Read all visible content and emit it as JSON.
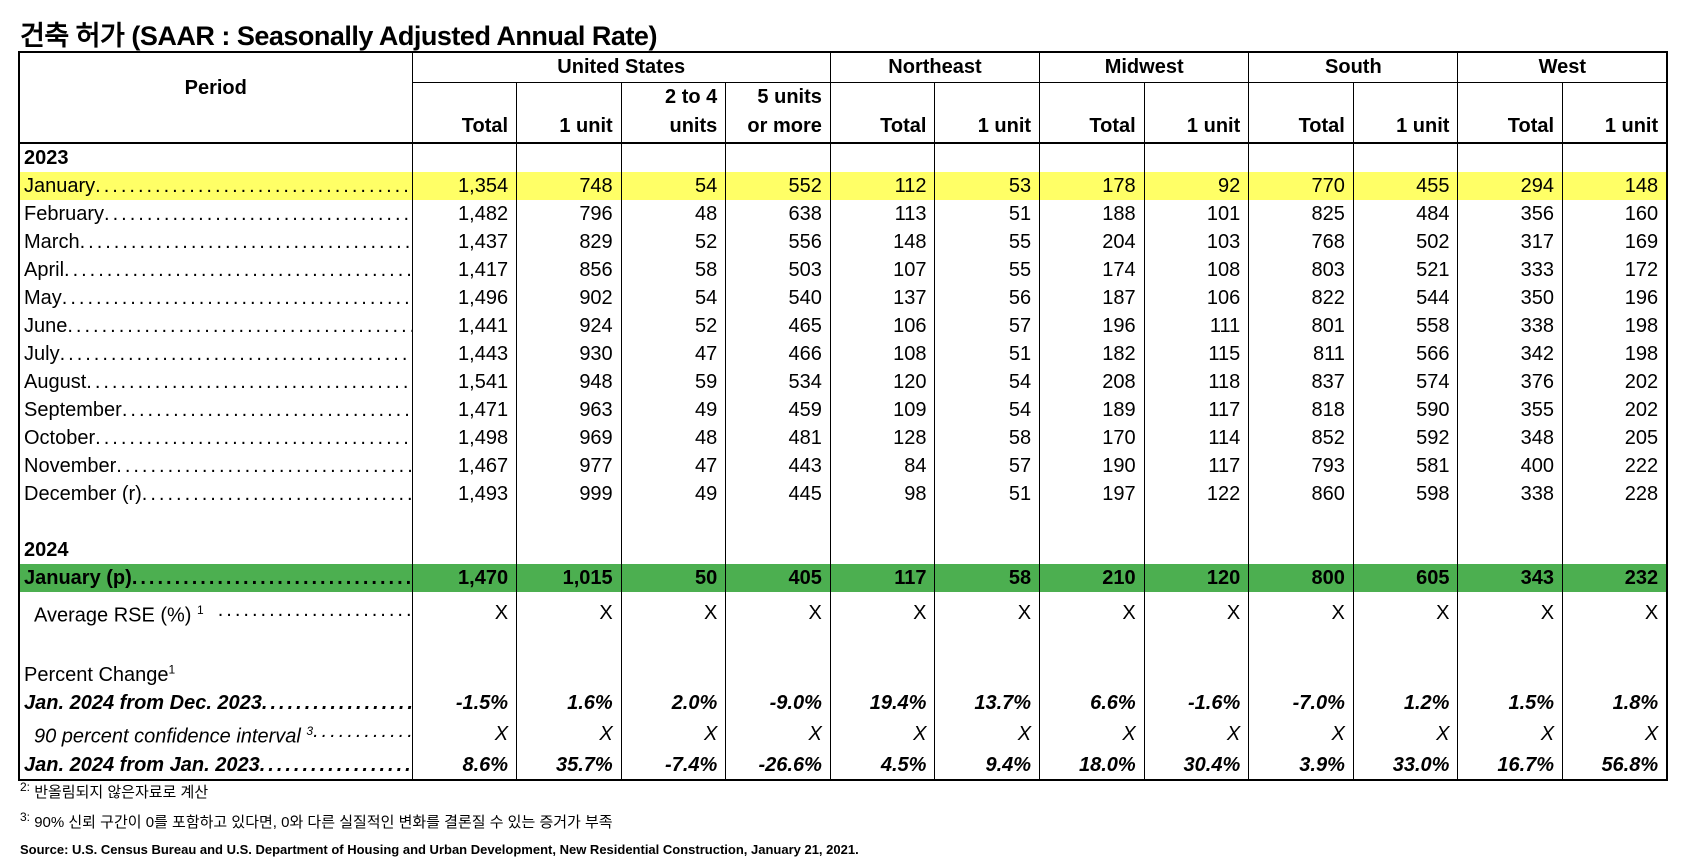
{
  "title": "건축 허가 (SAAR : Seasonally Adjusted Annual Rate)",
  "header": {
    "period": "Period",
    "groups": [
      {
        "label": "United States",
        "span": 4
      },
      {
        "label": "Northeast",
        "span": 2
      },
      {
        "label": "Midwest",
        "span": 2
      },
      {
        "label": "South",
        "span": 2
      },
      {
        "label": "West",
        "span": 2
      }
    ],
    "subheaders": [
      [
        "Total"
      ],
      [
        "1 unit"
      ],
      [
        "2 to 4",
        "units"
      ],
      [
        "5 units",
        "or more"
      ],
      [
        "Total"
      ],
      [
        "1 unit"
      ],
      [
        "Total"
      ],
      [
        "1 unit"
      ],
      [
        "Total"
      ],
      [
        "1 unit"
      ],
      [
        "Total"
      ],
      [
        "1 unit"
      ]
    ]
  },
  "colors": {
    "highlight_yellow": "#ffff66",
    "highlight_green": "#4caf50"
  },
  "rows": [
    {
      "label": "2023",
      "type": "year",
      "values": []
    },
    {
      "label": "January",
      "type": "yellow",
      "values": [
        "1,354",
        "748",
        "54",
        "552",
        "112",
        "53",
        "178",
        "92",
        "770",
        "455",
        "294",
        "148"
      ]
    },
    {
      "label": "February",
      "values": [
        "1,482",
        "796",
        "48",
        "638",
        "113",
        "51",
        "188",
        "101",
        "825",
        "484",
        "356",
        "160"
      ]
    },
    {
      "label": "March",
      "values": [
        "1,437",
        "829",
        "52",
        "556",
        "148",
        "55",
        "204",
        "103",
        "768",
        "502",
        "317",
        "169"
      ]
    },
    {
      "label": "April",
      "values": [
        "1,417",
        "856",
        "58",
        "503",
        "107",
        "55",
        "174",
        "108",
        "803",
        "521",
        "333",
        "172"
      ]
    },
    {
      "label": "May",
      "values": [
        "1,496",
        "902",
        "54",
        "540",
        "137",
        "56",
        "187",
        "106",
        "822",
        "544",
        "350",
        "196"
      ]
    },
    {
      "label": "June",
      "values": [
        "1,441",
        "924",
        "52",
        "465",
        "106",
        "57",
        "196",
        "111",
        "801",
        "558",
        "338",
        "198"
      ]
    },
    {
      "label": "July",
      "values": [
        "1,443",
        "930",
        "47",
        "466",
        "108",
        "51",
        "182",
        "115",
        "811",
        "566",
        "342",
        "198"
      ]
    },
    {
      "label": "August",
      "values": [
        "1,541",
        "948",
        "59",
        "534",
        "120",
        "54",
        "208",
        "118",
        "837",
        "574",
        "376",
        "202"
      ]
    },
    {
      "label": "September",
      "values": [
        "1,471",
        "963",
        "49",
        "459",
        "109",
        "54",
        "189",
        "117",
        "818",
        "590",
        "355",
        "202"
      ]
    },
    {
      "label": "October",
      "values": [
        "1,498",
        "969",
        "48",
        "481",
        "128",
        "58",
        "170",
        "114",
        "852",
        "592",
        "348",
        "205"
      ]
    },
    {
      "label": "November",
      "values": [
        "1,467",
        "977",
        "47",
        "443",
        "84",
        "57",
        "190",
        "117",
        "793",
        "581",
        "400",
        "222"
      ]
    },
    {
      "label": "December (r)",
      "values": [
        "1,493",
        "999",
        "49",
        "445",
        "98",
        "51",
        "197",
        "122",
        "860",
        "598",
        "338",
        "228"
      ]
    },
    {
      "label": "",
      "type": "blank",
      "values": []
    },
    {
      "label": "2024",
      "type": "year",
      "values": []
    },
    {
      "label": "January (p)",
      "type": "green",
      "values": [
        "1,470",
        "1,015",
        "50",
        "405",
        "117",
        "58",
        "210",
        "120",
        "800",
        "605",
        "343",
        "232"
      ]
    },
    {
      "label": "Average RSE (%)",
      "sup": "1",
      "type": "rse",
      "values": [
        "X",
        "X",
        "X",
        "X",
        "X",
        "X",
        "X",
        "X",
        "X",
        "X",
        "X",
        "X"
      ]
    },
    {
      "label": "",
      "type": "gap",
      "values": []
    },
    {
      "label": "Percent Change",
      "sup": "1",
      "type": "pc",
      "values": []
    },
    {
      "label": "Jan. 2024 from Dec. 2023",
      "type": "bi",
      "values": [
        "-1.5%",
        "1.6%",
        "2.0%",
        "-9.0%",
        "19.4%",
        "13.7%",
        "6.6%",
        "-1.6%",
        "-7.0%",
        "1.2%",
        "1.5%",
        "1.8%"
      ]
    },
    {
      "label": "90 percent confidence interval",
      "sup": "3",
      "type": "it",
      "values": [
        "X",
        "X",
        "X",
        "X",
        "X",
        "X",
        "X",
        "X",
        "X",
        "X",
        "X",
        "X"
      ]
    },
    {
      "label": "Jan. 2024 from Jan. 2023",
      "type": "bi",
      "values": [
        "8.6%",
        "35.7%",
        "-7.4%",
        "-26.6%",
        "4.5%",
        "9.4%",
        "18.0%",
        "30.4%",
        "3.9%",
        "33.0%",
        "16.7%",
        "56.8%"
      ]
    }
  ],
  "footnotes": [
    {
      "mark": "2:",
      "text": "반올림되지 않은자료로 계산"
    },
    {
      "mark": "3:",
      "text": "90% 신뢰 구간이 0를 포함하고 있다면, 0와 다른 실질적인 변화를 결론질 수 있는 증거가 부족"
    }
  ],
  "source": "Source: U.S. Census Bureau and U.S. Department of Housing and Urban Development, New Residential Construction, January 21, 2021."
}
